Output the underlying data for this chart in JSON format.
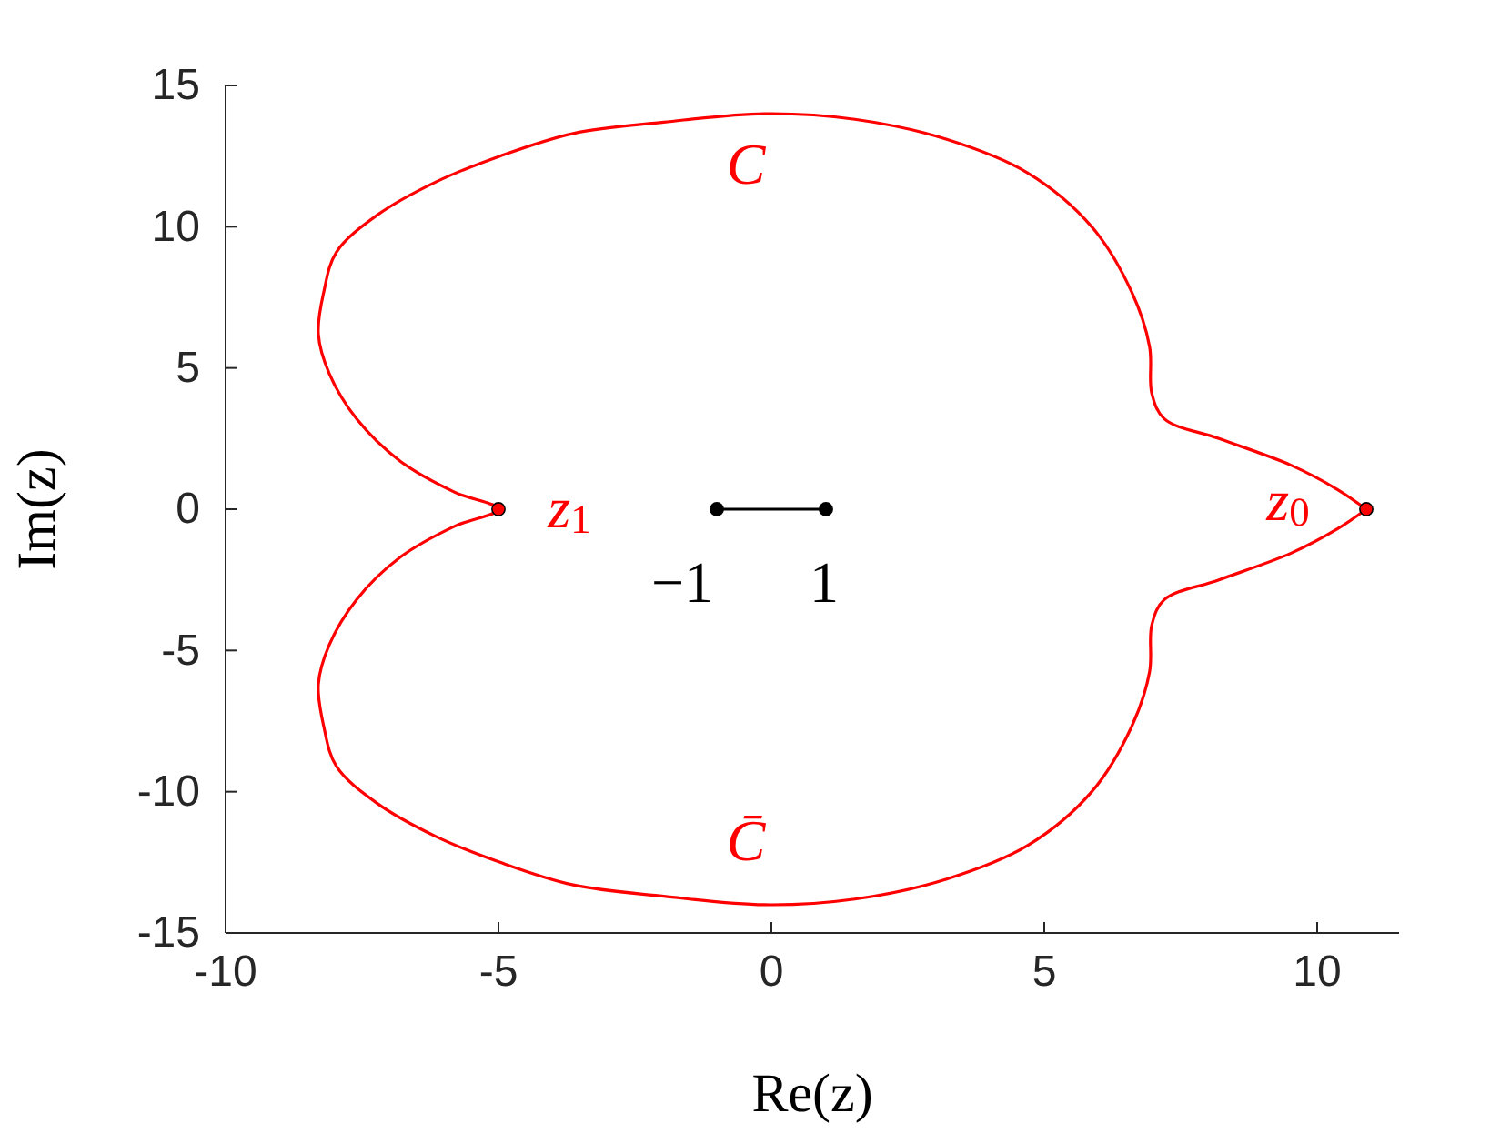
{
  "chart_data": {
    "type": "line",
    "xlabel": "Re(z)",
    "ylabel": "Im(z)",
    "xlim": [
      -10,
      11.5
    ],
    "ylim": [
      -15,
      15
    ],
    "xticks": [
      -10,
      -5,
      0,
      5,
      10
    ],
    "yticks": [
      -15,
      -10,
      -5,
      0,
      5,
      10,
      15
    ],
    "grid": false,
    "series": [
      {
        "type": "scatter",
        "color": "#ff0000",
        "marker": "circle",
        "x": [
          -5,
          10.9
        ],
        "values": [
          0,
          0
        ]
      },
      {
        "color": "#000000",
        "marker": "circle",
        "x": [
          -1,
          1
        ],
        "values": [
          0,
          0
        ]
      }
    ],
    "annotations": [
      "C",
      "C̄",
      "z$_{1}$",
      "z$_{0}$",
      "−1",
      "1"
    ]
  }
}
